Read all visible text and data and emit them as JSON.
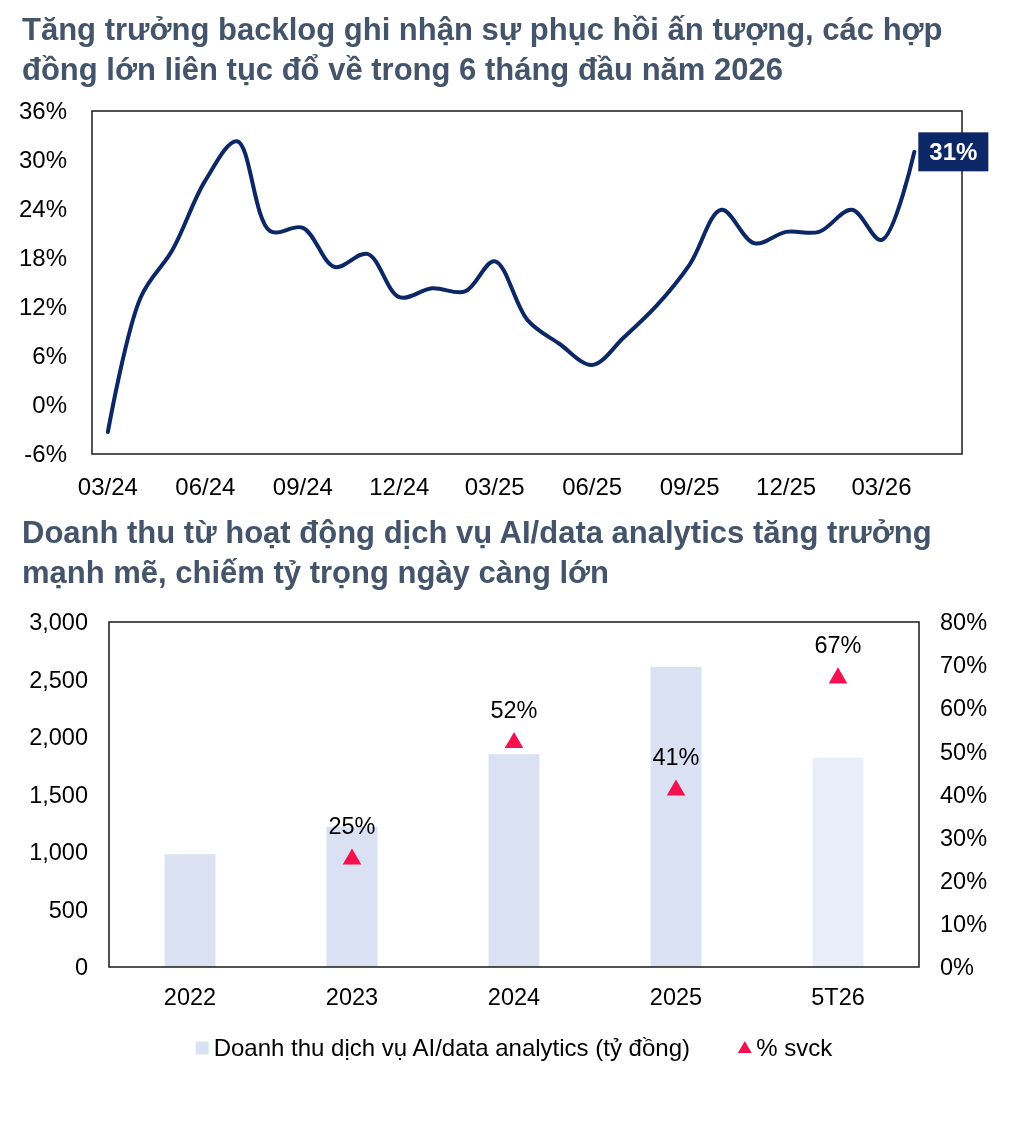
{
  "chart_data": [
    {
      "type": "line",
      "title": "Tăng trưởng backlog ghi nhận sự phục hồi ấn tượng, các hợp đồng lớn liên tục đổ về trong 6 tháng đầu năm 2026",
      "x": [
        "2024-03",
        "2024-04",
        "2024-05",
        "2024-06",
        "2024-07",
        "2024-08",
        "2024-09",
        "2024-10",
        "2024-11",
        "2024-12",
        "2025-01",
        "2025-02",
        "2025-03",
        "2025-04",
        "2025-05",
        "2025-06",
        "2025-07",
        "2025-08",
        "2025-09",
        "2025-10",
        "2025-11",
        "2025-12",
        "2026-01",
        "2026-02",
        "2026-03",
        "2026-04"
      ],
      "series": [
        {
          "color": "#0c2766",
          "values": [
            -3.3,
            13.2,
            19.0,
            27.5,
            32.3,
            21.3,
            21.7,
            16.9,
            18.5,
            13.2,
            14.3,
            13.9,
            17.6,
            10.4,
            7.5,
            4.9,
            8.3,
            12.2,
            17.2,
            23.9,
            19.8,
            21.2,
            21.2,
            23.9,
            20.2,
            31
          ],
          "value_labels": [
            null,
            null,
            null,
            null,
            null,
            null,
            null,
            null,
            null,
            null,
            null,
            null,
            null,
            null,
            null,
            null,
            null,
            null,
            null,
            null,
            null,
            null,
            null,
            null,
            null,
            "31%"
          ]
        }
      ],
      "xlim": [
        "2024-02-15",
        "2026-05-16"
      ],
      "xticks": [
        {
          "value": "2024-03",
          "label": "03/24"
        },
        {
          "value": "2024-06",
          "label": "06/24"
        },
        {
          "value": "2024-09",
          "label": "09/24"
        },
        {
          "value": "2024-12",
          "label": "12/24"
        },
        {
          "value": "2025-03",
          "label": "03/25"
        },
        {
          "value": "2025-06",
          "label": "06/25"
        },
        {
          "value": "2025-09",
          "label": "09/25"
        },
        {
          "value": "2025-12",
          "label": "12/25"
        },
        {
          "value": "2026-03",
          "label": "03/26"
        }
      ],
      "ylim": [
        -6,
        36
      ],
      "yticks": [
        {
          "value": -6,
          "label": "-6%"
        },
        {
          "value": 0,
          "label": "0%"
        },
        {
          "value": 6,
          "label": "6%"
        },
        {
          "value": 12,
          "label": "12%"
        },
        {
          "value": 18,
          "label": "18%"
        },
        {
          "value": 24,
          "label": "24%"
        },
        {
          "value": 30,
          "label": "30%"
        },
        {
          "value": 36,
          "label": "36%"
        }
      ]
    },
    {
      "type": "bar",
      "title": "Doanh thu từ hoạt động dịch vụ AI/data analytics tăng trưởng mạnh mẽ, chiếm tỷ trọng ngày càng lớn",
      "categories": [
        "2022",
        "2023",
        "2024",
        "2025",
        "5T26"
      ],
      "series": [
        {
          "name": "Doanh thu dịch vụ AI/data analytics (tỷ đồng)",
          "color": "#d9e1f2",
          "colors": [
            "#d9e1f2",
            "#d9e1f2",
            "#d9e1f2",
            "#d9e1f2",
            "#e9eef8"
          ],
          "values": [
            980,
            1220,
            1850,
            2610,
            1820
          ]
        },
        {
          "name": "% svck",
          "type": "scatter",
          "axis": "y2",
          "color": "#f5104f",
          "marker": "triangle",
          "values": [
            null,
            25,
            52,
            41,
            67
          ],
          "value_labels": [
            null,
            "25%",
            "52%",
            "41%",
            "67%"
          ]
        }
      ],
      "ylim": [
        0,
        3000
      ],
      "yticks": [
        0,
        500,
        {
          "value": 1000,
          "label": "1,000"
        },
        {
          "value": 1500,
          "label": "1,500"
        },
        {
          "value": 2000,
          "label": "2,000"
        },
        {
          "value": 2500,
          "label": "2,500"
        },
        {
          "value": 3000,
          "label": "3,000"
        }
      ],
      "y2lim": [
        0,
        80
      ],
      "y2ticks": [
        {
          "value": 0,
          "label": "0%"
        },
        {
          "value": 10,
          "label": "10%"
        },
        {
          "value": 20,
          "label": "20%"
        },
        {
          "value": 30,
          "label": "30%"
        },
        {
          "value": 40,
          "label": "40%"
        },
        {
          "value": 50,
          "label": "50%"
        },
        {
          "value": 60,
          "label": "60%"
        },
        {
          "value": 70,
          "label": "70%"
        },
        {
          "value": 80,
          "label": "80%"
        }
      ],
      "legend": "bottom"
    }
  ]
}
